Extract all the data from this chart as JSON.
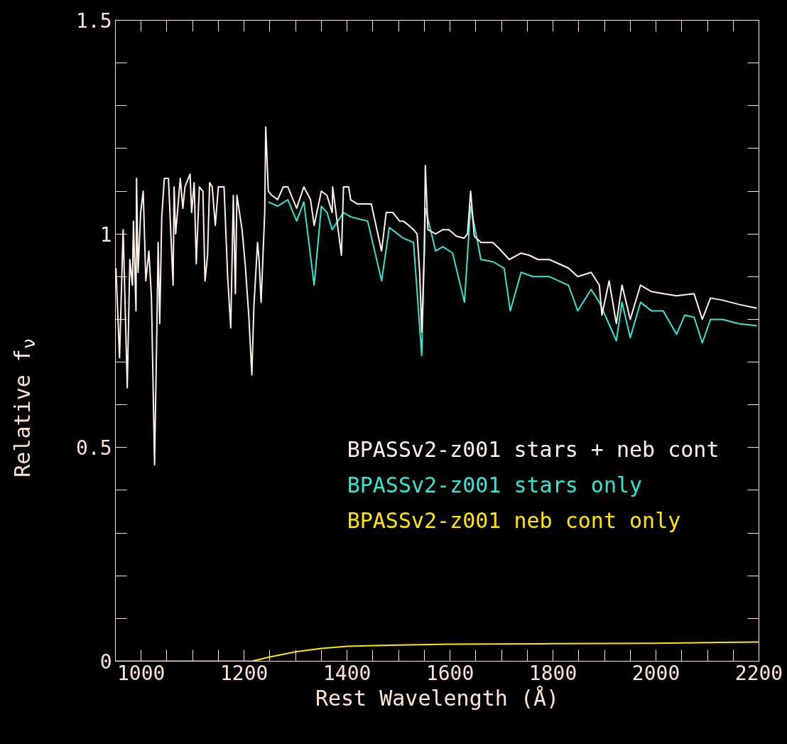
{
  "chart_data": {
    "type": "line",
    "xlabel": "Rest Wavelength (Å)",
    "ylabel": "Relative f$_{ν}$",
    "xlim": [
      950,
      2200
    ],
    "ylim": [
      0,
      1.5
    ],
    "xticks": [
      {
        "value": 950,
        "label": null
      },
      1000,
      {
        "value": 1050,
        "label": null
      },
      {
        "value": 1100,
        "label": null
      },
      {
        "value": 1150,
        "label": null
      },
      1200,
      {
        "value": 1250,
        "label": null
      },
      {
        "value": 1300,
        "label": null
      },
      {
        "value": 1350,
        "label": null
      },
      1400,
      {
        "value": 1450,
        "label": null
      },
      {
        "value": 1500,
        "label": null
      },
      {
        "value": 1550,
        "label": null
      },
      1600,
      {
        "value": 1650,
        "label": null
      },
      {
        "value": 1700,
        "label": null
      },
      {
        "value": 1750,
        "label": null
      },
      1800,
      {
        "value": 1850,
        "label": null
      },
      {
        "value": 1900,
        "label": null
      },
      {
        "value": 1950,
        "label": null
      },
      2000,
      {
        "value": 2050,
        "label": null
      },
      {
        "value": 2100,
        "label": null
      },
      {
        "value": 2150,
        "label": null
      },
      2200
    ],
    "yticks": [
      0,
      {
        "value": 0.1,
        "label": null
      },
      {
        "value": 0.2,
        "label": null
      },
      {
        "value": 0.3,
        "label": null
      },
      {
        "value": 0.4,
        "label": null
      },
      0.5,
      {
        "value": 0.6,
        "label": null
      },
      {
        "value": 0.7,
        "label": null
      },
      {
        "value": 0.8,
        "label": null
      },
      {
        "value": 0.9,
        "label": null
      },
      1,
      {
        "value": 1.1,
        "label": null
      },
      {
        "value": 1.2,
        "label": null
      },
      {
        "value": 1.3,
        "label": null
      },
      {
        "value": 1.4,
        "label": null
      },
      1.5
    ],
    "grid": false,
    "legend": "right",
    "marker": "none",
    "line_style": "solid",
    "series": [
      {
        "name": "BPASSv2-z001 stars only",
        "color": "#33e6d2",
        "x": [
          1247,
          1265,
          1285,
          1302,
          1316,
          1336,
          1350,
          1361,
          1371,
          1393,
          1407,
          1440,
          1467,
          1482,
          1509,
          1529,
          1545,
          1552,
          1572,
          1586,
          1605,
          1628,
          1640,
          1660,
          1683,
          1705,
          1717,
          1738,
          1761,
          1771,
          1785,
          1793,
          1830,
          1848,
          1874,
          1890,
          1923,
          1934,
          1950,
          1970,
          1991,
          2014,
          2040,
          2056,
          2074,
          2090,
          2106,
          2129,
          2161,
          2196
        ],
        "values": [
          1.075,
          1.065,
          1.08,
          1.03,
          1.075,
          0.88,
          1.065,
          1.05,
          1.01,
          1.05,
          1.04,
          1.03,
          0.89,
          1.015,
          0.99,
          0.98,
          0.715,
          1.06,
          0.96,
          0.97,
          0.955,
          0.84,
          1.065,
          0.94,
          0.935,
          0.92,
          0.82,
          0.91,
          0.9,
          0.9,
          0.9,
          0.9,
          0.88,
          0.82,
          0.87,
          0.84,
          0.75,
          0.84,
          0.757,
          0.84,
          0.82,
          0.82,
          0.765,
          0.81,
          0.805,
          0.745,
          0.8,
          0.8,
          0.79,
          0.785
        ]
      },
      {
        "name": "BPASSv2-z001 stars + neb cont",
        "color": "#fff0e8",
        "x": [
          951,
          958,
          965,
          973,
          978,
          983,
          985,
          990,
          991,
          994,
          999,
          1004,
          1009,
          1015,
          1020,
          1026,
          1030,
          1033,
          1036,
          1040,
          1045,
          1053,
          1062,
          1064,
          1067,
          1076,
          1081,
          1085,
          1095,
          1098,
          1103,
          1107,
          1113,
          1120,
          1124,
          1129,
          1133,
          1138,
          1144,
          1150,
          1161,
          1168,
          1174,
          1179,
          1183,
          1186,
          1196,
          1202,
          1209,
          1215,
          1219,
          1226,
          1229,
          1233,
          1237,
          1240,
          1242,
          1247,
          1254,
          1265,
          1276,
          1285,
          1302,
          1316,
          1329,
          1336,
          1350,
          1361,
          1371,
          1372,
          1389,
          1393,
          1403,
          1407,
          1420,
          1440,
          1447,
          1467,
          1476,
          1489,
          1502,
          1509,
          1520,
          1529,
          1536,
          1541,
          1545,
          1550,
          1552,
          1557,
          1572,
          1586,
          1598,
          1612,
          1627,
          1634,
          1640,
          1647,
          1660,
          1683,
          1696,
          1715,
          1738,
          1754,
          1771,
          1793,
          1830,
          1848,
          1874,
          1890,
          1895,
          1909,
          1923,
          1934,
          1950,
          1970,
          1991,
          2014,
          2040,
          2074,
          2090,
          2106,
          2129,
          2161,
          2196
        ],
        "values": [
          0.92,
          0.71,
          1.01,
          0.64,
          0.94,
          0.88,
          1.03,
          0.82,
          1.13,
          0.91,
          1.05,
          1.1,
          0.89,
          0.96,
          0.85,
          0.46,
          0.74,
          0.98,
          0.79,
          1.04,
          1.13,
          1.13,
          0.88,
          1.11,
          1.0,
          1.13,
          1.06,
          1.11,
          1.14,
          1.05,
          1.12,
          0.93,
          1.11,
          1.1,
          0.89,
          0.95,
          1.12,
          1.11,
          1.02,
          1.11,
          1.11,
          0.9,
          0.78,
          1.09,
          0.86,
          1.09,
          1.01,
          0.93,
          0.81,
          0.67,
          0.83,
          0.98,
          0.94,
          0.84,
          0.96,
          1.05,
          1.25,
          1.1,
          1.09,
          1.08,
          1.11,
          1.11,
          1.06,
          1.11,
          1.08,
          1.02,
          1.1,
          1.09,
          1.05,
          1.11,
          0.95,
          1.11,
          1.11,
          1.08,
          1.07,
          1.07,
          1.07,
          0.96,
          1.05,
          1.05,
          1.03,
          1.03,
          1.02,
          1.01,
          1.0,
          0.91,
          0.77,
          0.96,
          1.16,
          1.01,
          1.0,
          1.01,
          1.01,
          0.995,
          0.99,
          1.0,
          1.1,
          0.995,
          0.98,
          0.98,
          0.965,
          0.94,
          0.955,
          0.95,
          0.94,
          0.94,
          0.92,
          0.9,
          0.91,
          0.88,
          0.81,
          0.89,
          0.79,
          0.88,
          0.8,
          0.88,
          0.865,
          0.86,
          0.855,
          0.86,
          0.8,
          0.85,
          0.845,
          0.835,
          0.826
        ]
      },
      {
        "name": "BPASSv2-z001 neb cont only",
        "color": "#ffe600",
        "x": [
          950,
          1215,
          1250,
          1300,
          1350,
          1400,
          1500,
          1600,
          1800,
          2000,
          2200
        ],
        "values": [
          0,
          0,
          0.01,
          0.022,
          0.03,
          0.035,
          0.038,
          0.04,
          0.041,
          0.042,
          0.045
        ]
      }
    ]
  }
}
